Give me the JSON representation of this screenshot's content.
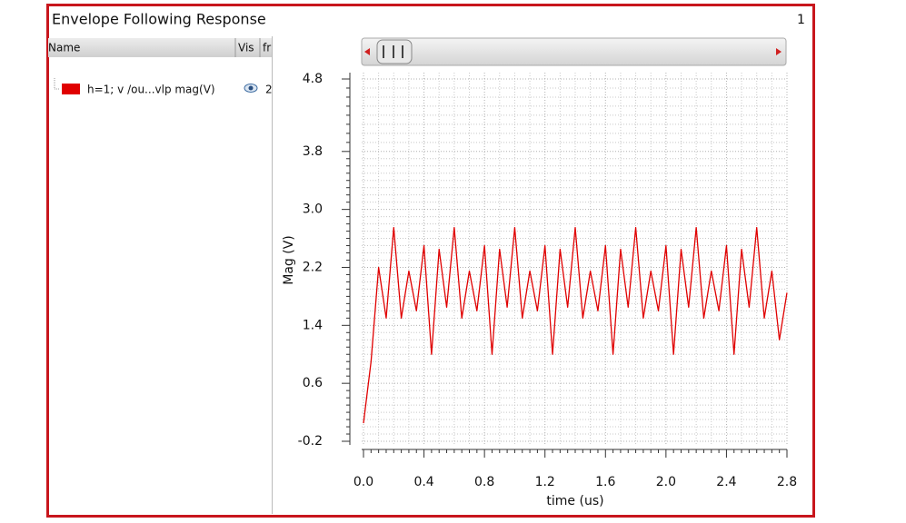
{
  "window": {
    "title": "Envelope Following Response",
    "page": "1"
  },
  "tree": {
    "columns": [
      "Name",
      "Vis",
      "fr"
    ],
    "items": [
      {
        "vis": "2"
      }
    ]
  },
  "chart_data": {
    "type": "line",
    "xlabel": "time (us)",
    "ylabel": "Mag (V)",
    "x": [
      0,
      0.05,
      0.1,
      0.15,
      0.2,
      0.25,
      0.3,
      0.35,
      0.4,
      0.45,
      0.5,
      0.55,
      0.6,
      0.65,
      0.7,
      0.75,
      0.8,
      0.85,
      0.9,
      0.95,
      1.0,
      1.05,
      1.1,
      1.15,
      1.2,
      1.25,
      1.3,
      1.35,
      1.4,
      1.45,
      1.5,
      1.55,
      1.6,
      1.65,
      1.7,
      1.75,
      1.8,
      1.85,
      1.9,
      1.95,
      2.0,
      2.05,
      2.1,
      2.15,
      2.2,
      2.25,
      2.3,
      2.35,
      2.4,
      2.45,
      2.5,
      2.55,
      2.6,
      2.65,
      2.7,
      2.75,
      2.8
    ],
    "series": [
      {
        "name": "h=1; v /ou...vlp mag(V)",
        "color": "#e00000",
        "values": [
          0.05,
          0.9,
          2.2,
          1.5,
          2.75,
          1.5,
          2.15,
          1.6,
          2.5,
          1.0,
          2.45,
          1.65,
          2.75,
          1.5,
          2.15,
          1.6,
          2.5,
          1.0,
          2.45,
          1.65,
          2.75,
          1.5,
          2.15,
          1.6,
          2.5,
          1.0,
          2.45,
          1.65,
          2.75,
          1.5,
          2.15,
          1.6,
          2.5,
          1.0,
          2.45,
          1.65,
          2.75,
          1.5,
          2.15,
          1.6,
          2.5,
          1.0,
          2.45,
          1.65,
          2.75,
          1.5,
          2.15,
          1.6,
          2.5,
          1.0,
          2.45,
          1.65,
          2.75,
          1.5,
          2.15,
          1.2,
          1.85
        ]
      }
    ],
    "xlim": [
      0,
      2.8
    ],
    "xticks": [
      {
        "value": 0,
        "label": "0.0"
      },
      0.4,
      0.8,
      1.2,
      1.6,
      {
        "value": 2,
        "label": "2.0"
      },
      2.4,
      2.8
    ],
    "ylim": [
      -0.2,
      4.8
    ],
    "yticks": [
      -0.2,
      0.6,
      1.4,
      2.2,
      {
        "value": 3,
        "label": "3.0"
      },
      3.8,
      4.8
    ],
    "grid": true
  }
}
